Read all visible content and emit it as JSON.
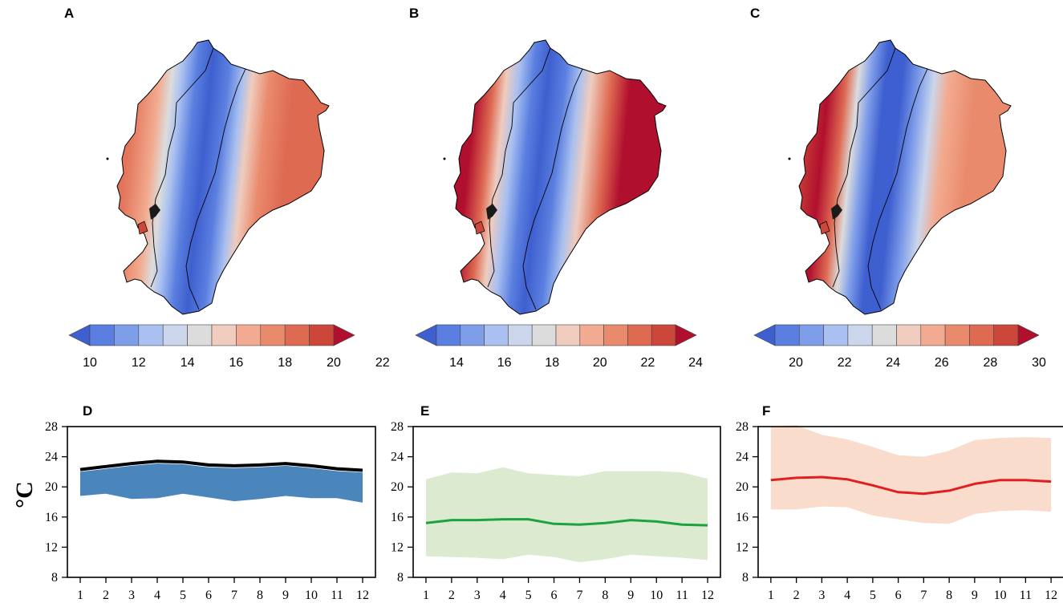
{
  "figure": {
    "ylabel": "°C"
  },
  "maps": [
    {
      "label": "A",
      "colorbar": {
        "ticks": [
          "10",
          "12",
          "14",
          "16",
          "18",
          "20",
          "22"
        ],
        "colors": [
          "#3e5fcf",
          "#5b7fe0",
          "#7f9eea",
          "#a9c0f0",
          "#cbd6ec",
          "#dcdcdc",
          "#efccbe",
          "#f2ab90",
          "#ea8a6c",
          "#de6a52",
          "#cc4739",
          "#b10f2e"
        ]
      }
    },
    {
      "label": "B",
      "colorbar": {
        "ticks": [
          "14",
          "16",
          "18",
          "20",
          "22",
          "24"
        ],
        "colors": [
          "#3e5fcf",
          "#5b7fe0",
          "#7f9eea",
          "#a9c0f0",
          "#cbd6ec",
          "#dcdcdc",
          "#efccbe",
          "#f2ab90",
          "#ea8a6c",
          "#de6a52",
          "#cc4739",
          "#b10f2e"
        ]
      }
    },
    {
      "label": "C",
      "colorbar": {
        "ticks": [
          "20",
          "22",
          "24",
          "26",
          "28",
          "30"
        ],
        "colors": [
          "#3e5fcf",
          "#5b7fe0",
          "#7f9eea",
          "#a9c0f0",
          "#cbd6ec",
          "#dcdcdc",
          "#efccbe",
          "#f2ab90",
          "#ea8a6c",
          "#de6a52",
          "#cc4739",
          "#b10f2e"
        ]
      }
    }
  ],
  "chart_data": [
    {
      "label": "D",
      "type": "area",
      "x": [
        1,
        2,
        3,
        4,
        5,
        6,
        7,
        8,
        9,
        10,
        11,
        12
      ],
      "xticks": [
        "1",
        "2",
        "3",
        "4",
        "5",
        "6",
        "7",
        "8",
        "9",
        "10",
        "11",
        "12"
      ],
      "yticks": [
        "8",
        "12",
        "16",
        "20",
        "24",
        "28"
      ],
      "ylim": [
        8,
        28
      ],
      "xlim": [
        0.5,
        12.5
      ],
      "ylabel": "°C",
      "line_color": "#000000",
      "band_color": "#4a86bb",
      "band_opacity": 1,
      "series": [
        {
          "name": "mean",
          "values": [
            22.3,
            22.7,
            23.1,
            23.4,
            23.3,
            22.9,
            22.8,
            22.9,
            23.1,
            22.8,
            22.4,
            22.2
          ]
        },
        {
          "name": "band_upper",
          "values": [
            22.0,
            22.4,
            22.8,
            23.1,
            23.0,
            22.6,
            22.5,
            22.6,
            22.8,
            22.5,
            22.1,
            21.9
          ]
        },
        {
          "name": "band_lower",
          "values": [
            18.8,
            19.1,
            18.4,
            18.5,
            19.1,
            18.6,
            18.1,
            18.4,
            18.8,
            18.5,
            18.5,
            17.9
          ]
        }
      ]
    },
    {
      "label": "E",
      "type": "area",
      "x": [
        1,
        2,
        3,
        4,
        5,
        6,
        7,
        8,
        9,
        10,
        11,
        12
      ],
      "xticks": [
        "1",
        "2",
        "3",
        "4",
        "5",
        "6",
        "7",
        "8",
        "9",
        "10",
        "11",
        "12"
      ],
      "yticks": [
        "8",
        "12",
        "16",
        "20",
        "24",
        "28"
      ],
      "ylim": [
        8,
        28
      ],
      "xlim": [
        0.5,
        12.5
      ],
      "ylabel": "",
      "line_color": "#1aa340",
      "band_color": "#dcebd0",
      "band_opacity": 1,
      "series": [
        {
          "name": "mean",
          "values": [
            15.2,
            15.6,
            15.6,
            15.7,
            15.7,
            15.1,
            15.0,
            15.2,
            15.6,
            15.4,
            15.0,
            14.9
          ]
        },
        {
          "name": "band_upper",
          "values": [
            21.0,
            21.9,
            21.8,
            22.6,
            21.8,
            21.6,
            21.4,
            22.1,
            22.1,
            22.1,
            21.9,
            21.1
          ]
        },
        {
          "name": "band_lower",
          "values": [
            10.8,
            10.7,
            10.6,
            10.4,
            11.0,
            10.7,
            10.0,
            10.4,
            11.0,
            10.8,
            10.6,
            10.3
          ]
        }
      ]
    },
    {
      "label": "F",
      "type": "area",
      "x": [
        1,
        2,
        3,
        4,
        5,
        6,
        7,
        8,
        9,
        10,
        11,
        12
      ],
      "xticks": [
        "1",
        "2",
        "3",
        "4",
        "5",
        "6",
        "7",
        "8",
        "9",
        "10",
        "11",
        "12"
      ],
      "yticks": [
        "8",
        "12",
        "16",
        "20",
        "24",
        "28"
      ],
      "ylim": [
        8,
        28
      ],
      "xlim": [
        0.5,
        12.5
      ],
      "ylabel": "",
      "line_color": "#e02020",
      "band_color": "#f9dccb",
      "band_opacity": 1,
      "series": [
        {
          "name": "mean",
          "values": [
            20.9,
            21.2,
            21.3,
            21.0,
            20.2,
            19.3,
            19.1,
            19.5,
            20.4,
            20.9,
            20.9,
            20.7
          ]
        },
        {
          "name": "band_upper",
          "values": [
            28.0,
            28.2,
            26.9,
            26.3,
            25.3,
            24.2,
            24.0,
            24.8,
            26.2,
            26.5,
            26.6,
            26.5
          ]
        },
        {
          "name": "band_lower",
          "values": [
            17.0,
            17.0,
            17.4,
            17.3,
            16.2,
            15.7,
            15.2,
            15.1,
            16.4,
            16.8,
            16.9,
            16.7
          ]
        }
      ]
    }
  ]
}
